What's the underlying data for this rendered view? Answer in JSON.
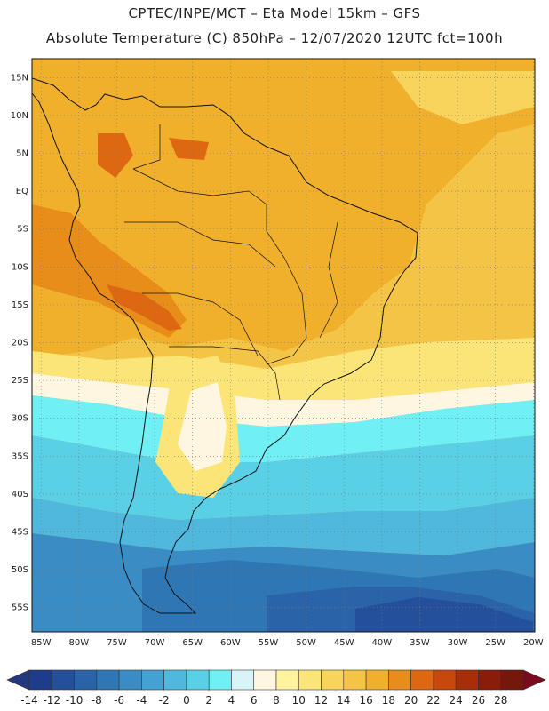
{
  "header": {
    "line1": "CPTEC/INPE/MCT –  Eta Model 15km – GFS",
    "line2": "Absolute Temperature (C) 850hPa – 12/07/2020 12UTC fct=100h"
  },
  "map": {
    "lat_labels": [
      "15N",
      "10N",
      "5N",
      "EQ",
      "5S",
      "10S",
      "15S",
      "20S",
      "25S",
      "30S",
      "35S",
      "40S",
      "45S",
      "50S",
      "55S"
    ],
    "lon_labels": [
      "85W",
      "80W",
      "75W",
      "70W",
      "65W",
      "60W",
      "55W",
      "50W",
      "45W",
      "40W",
      "35W",
      "30W",
      "25W",
      "20W"
    ],
    "lat_values": [
      15,
      10,
      5,
      0,
      -5,
      -10,
      -15,
      -20,
      -25,
      -30,
      -35,
      -40,
      -45,
      -50,
      -55
    ],
    "lon_values": [
      -85,
      -80,
      -75,
      -70,
      -65,
      -60,
      -55,
      -50,
      -45,
      -40,
      -35,
      -30,
      -25,
      -20
    ]
  },
  "colorbar": {
    "labels": [
      "-14",
      "-12",
      "-10",
      "-8",
      "-6",
      "-4",
      "-2",
      "0",
      "2",
      "4",
      "6",
      "8",
      "10",
      "12",
      "14",
      "16",
      "18",
      "20",
      "22",
      "24",
      "26",
      "28"
    ],
    "colors": [
      "#1e3c8c",
      "#24509b",
      "#2a63a8",
      "#2f77b4",
      "#3a8cc4",
      "#44a2d2",
      "#4fb8dc",
      "#5ad0e6",
      "#70f0f5",
      "#d8f4f7",
      "#fff6e2",
      "#fff3a0",
      "#fce578",
      "#f8d45c",
      "#f3c446",
      "#f0b02c",
      "#e88c1a",
      "#de6812",
      "#c8480c",
      "#a82e0a",
      "#8a1c0a",
      "#74180c"
    ],
    "under_color": "#24387e",
    "over_color": "#7a0a1e"
  }
}
